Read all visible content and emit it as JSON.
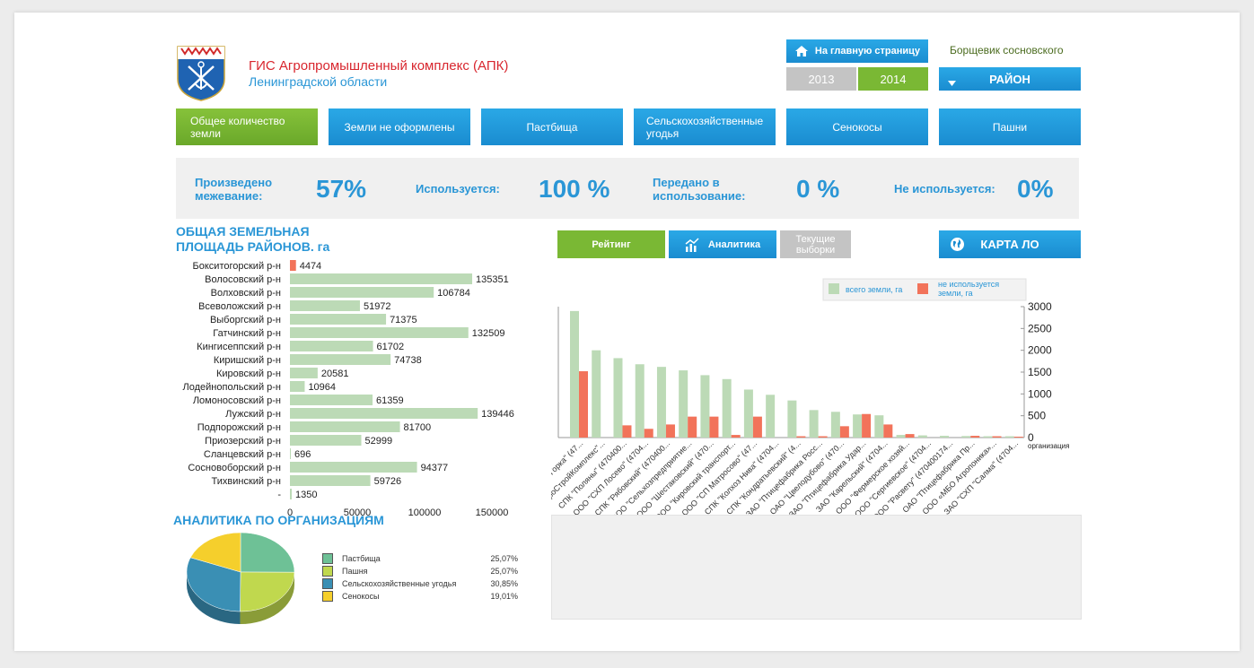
{
  "header": {
    "title_line1": "ГИС Агропромышленный комплекс (АПК)",
    "title_line2": "Ленинградской области",
    "home_label": "На главную страницу",
    "top_right_text": "Борщевик сосновского",
    "years": [
      "2013",
      "2014"
    ],
    "active_year": "2014",
    "district_select": "РАЙОН"
  },
  "nav": [
    {
      "label": "Общее количество земли",
      "active": true
    },
    {
      "label": "Земли не оформлены"
    },
    {
      "label": "Пастбища"
    },
    {
      "label": "Сельскохозяйственные угодья"
    },
    {
      "label": "Сенокосы"
    },
    {
      "label": "Пашни"
    }
  ],
  "stats": {
    "survey_label": "Произведено межевание:",
    "survey_value": "57%",
    "used_label": "Используется:",
    "used_value": "100 %",
    "transferred_label": "Передано в использование:",
    "transferred_value": "0 %",
    "unused_label": "Не используется:",
    "unused_value": "0%"
  },
  "tabs": {
    "rating": "Рейтинг",
    "analytics": "Аналитика",
    "current": "Текущие выборки",
    "map": "КАРТА ЛО"
  },
  "colors": {
    "accent_blue": "#2a96d6",
    "accent_green": "#7ab834",
    "bar_green": "#bcdab6",
    "bar_red": "#f2735a"
  },
  "districts_title": "ОБЩАЯ ЗЕМЕЛЬНАЯ ПЛОЩАДЬ РАЙОНОВ. га",
  "orgs_title": "АНАЛИТИКА ПО ОРГАНИЗАЦИЯМ",
  "chart_data": [
    {
      "type": "bar",
      "orientation": "horizontal",
      "categories": [
        "Бокситогорский р-н",
        "Волосовский р-н",
        "Волховский р-н",
        "Всеволожский р-н",
        "Выборгский р-н",
        "Гатчинский р-н",
        "Кингисеппский р-н",
        "Киришский р-н",
        "Кировский р-н",
        "Лодейнопольский р-н",
        "Ломоносовский р-н",
        "Лужский р-н",
        "Подпорожский р-н",
        "Приозерский р-н",
        "Сланцевский р-н",
        "Сосновоборский р-н",
        "Тихвинский р-н",
        "-"
      ],
      "values": [
        4474,
        135351,
        106784,
        51972,
        71375,
        132509,
        61702,
        74738,
        20581,
        10964,
        61359,
        139446,
        81700,
        52999,
        696,
        94377,
        59726,
        1350
      ],
      "highlight_index": 0,
      "xticks": [
        "0",
        "50000",
        "100000",
        "150000"
      ],
      "xlim": [
        0,
        150000
      ]
    },
    {
      "type": "bar",
      "categories": [
        "...ая Горка\" (47...",
        "ЗАО \"АгроСтройКомплекс\"...",
        "СПК \"Поляны\" (470400...",
        "ООО \"СХП Лосево\" (4704...",
        "СПК \"Рябовский\" (470400...",
        "ООО \"Сельхозпредприятие...",
        "ООО \"Шестаковский\" (470...",
        "ООО \"Кировский транспорт...",
        "ООО \"СП Матросово\" (47...",
        "СПК \"Колхоз Нива\" (4704...",
        "СПК \"Кондратьевский\" (4...",
        "ЗАО \"Птицефабрика Росс...",
        "ОАО \"Цвелодубово\" (470...",
        "ЗАО \"Птицефабрика Удар...",
        "ЗАО \"Карельский\" (4704...",
        "ООО \"Фермерское хозяй...",
        "ООО \"Сергиевское\" (4704...",
        "ООО \"Расвету\" (470400174...",
        "ОАО \"Птицефабрика Пр...",
        "ООО «МБО Агропоника»...",
        "ЗАО \"СХП \"Салма\" (4704..."
      ],
      "series": [
        {
          "name": "всего земли, га",
          "values": [
            2900,
            2000,
            1820,
            1680,
            1620,
            1540,
            1430,
            1340,
            1100,
            980,
            850,
            630,
            590,
            530,
            510,
            60,
            50,
            40,
            35,
            30,
            30
          ]
        },
        {
          "name": "не используется земли, га",
          "values": [
            1520,
            0,
            280,
            200,
            300,
            480,
            480,
            60,
            480,
            0,
            30,
            30,
            260,
            540,
            300,
            80,
            0,
            0,
            40,
            30,
            20
          ]
        }
      ],
      "ylim": [
        0,
        3000
      ],
      "yticks": [
        "0",
        "500",
        "1000",
        "1500",
        "2000",
        "2500",
        "3000"
      ],
      "xlabel": "организация",
      "legend": "top"
    },
    {
      "type": "pie",
      "labels": [
        "Пастбища",
        "Пашня",
        "Сельскохозяйственные угодья",
        "Сенокосы"
      ],
      "display": [
        "25,07%",
        "25,07%",
        "30,85%",
        "19,01%"
      ],
      "values": [
        25.07,
        25.07,
        30.85,
        19.01
      ],
      "colors": [
        "#6ec196",
        "#c0d84e",
        "#3a8fb4",
        "#f5cf2c"
      ]
    }
  ]
}
